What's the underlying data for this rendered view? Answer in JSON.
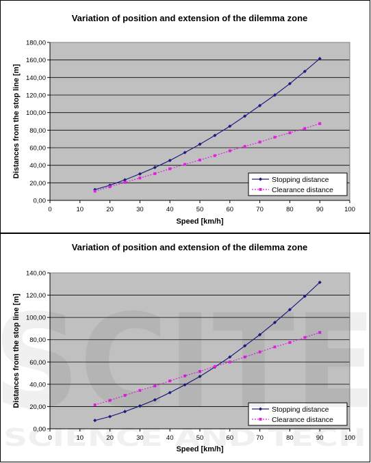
{
  "chart_data": [
    {
      "type": "line",
      "title": "Variation of position and extension of the dilemma zone",
      "xlabel": "Speed [km/h]",
      "ylabel": "Distances from the stop line [m]",
      "xlim": [
        0,
        100
      ],
      "ylim": [
        0,
        180
      ],
      "xticks": [
        "0",
        "10",
        "20",
        "30",
        "40",
        "50",
        "60",
        "70",
        "80",
        "90",
        "100"
      ],
      "yticks": [
        "0,00",
        "20,00",
        "40,00",
        "60,00",
        "80,00",
        "100,00",
        "120,00",
        "140,00",
        "160,00",
        "180,00"
      ],
      "x": [
        15,
        20,
        25,
        30,
        35,
        40,
        45,
        50,
        55,
        60,
        65,
        70,
        75,
        80,
        85,
        90
      ],
      "grid": true,
      "legend_position": "bottom-right",
      "series": [
        {
          "name": "Stopping distance",
          "color": "#1c1c80",
          "values": [
            12.3,
            17.2,
            23.4,
            30.2,
            37.5,
            45.5,
            54.5,
            64.0,
            74.0,
            84.5,
            96.0,
            108.0,
            120.0,
            133.0,
            147.0,
            161.5
          ]
        },
        {
          "name": "Clearance distance",
          "color": "#e020e0",
          "values": [
            10.5,
            15.5,
            20.5,
            25.5,
            30.5,
            36.0,
            41.0,
            46.0,
            51.0,
            56.5,
            61.5,
            66.5,
            72.0,
            77.0,
            82.0,
            87.5
          ]
        }
      ]
    },
    {
      "type": "line",
      "title": "Variation of position and extension of the dilemma zone",
      "xlabel": "Speed [km/h]",
      "ylabel": "Distances from the stop line [m]",
      "xlim": [
        0,
        100
      ],
      "ylim": [
        0,
        140
      ],
      "xticks": [
        "0",
        "10",
        "20",
        "30",
        "40",
        "50",
        "60",
        "70",
        "80",
        "90",
        "100"
      ],
      "yticks": [
        "0,00",
        "20,00",
        "40,00",
        "60,00",
        "80,00",
        "100,00",
        "120,00",
        "140,00"
      ],
      "x": [
        15,
        20,
        25,
        30,
        35,
        40,
        45,
        50,
        55,
        60,
        65,
        70,
        75,
        80,
        85,
        90
      ],
      "grid": true,
      "legend_position": "bottom-right",
      "series": [
        {
          "name": "Stopping distance",
          "color": "#1c1c80",
          "values": [
            7.5,
            11.0,
            15.5,
            20.5,
            26.0,
            32.5,
            39.5,
            47.0,
            55.5,
            64.5,
            74.5,
            84.5,
            95.5,
            107.0,
            119.0,
            131.5
          ]
        },
        {
          "name": "Clearance distance",
          "color": "#e020e0",
          "values": [
            21.5,
            25.5,
            30.0,
            34.5,
            38.5,
            43.0,
            47.5,
            51.5,
            56.0,
            60.0,
            64.5,
            69.0,
            73.5,
            77.5,
            82.0,
            86.5
          ]
        }
      ]
    }
  ],
  "watermark": {
    "main": "SCITE",
    "sub": "SCIENCE AND TECH"
  }
}
